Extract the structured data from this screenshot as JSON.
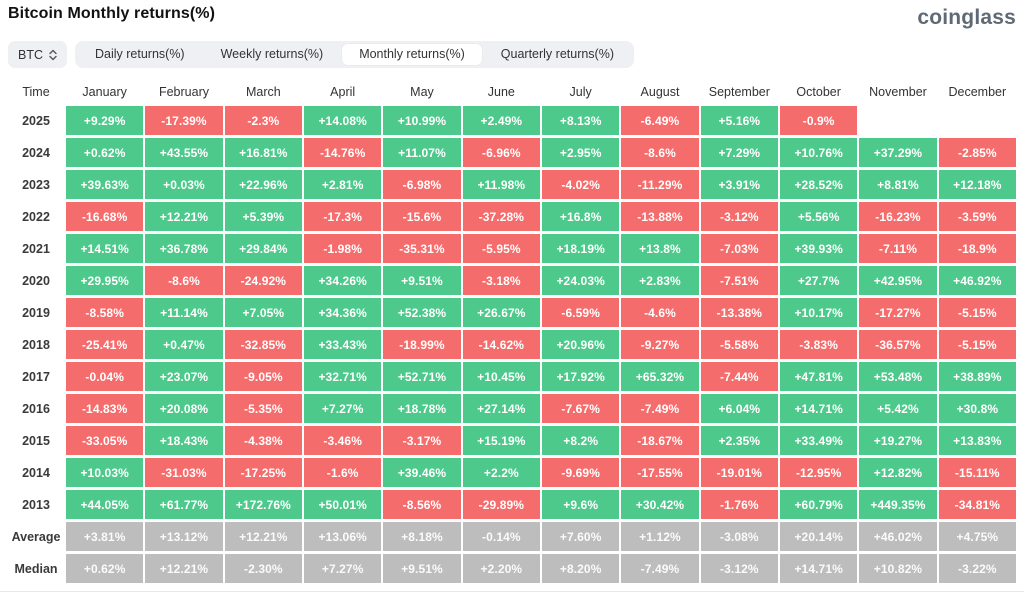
{
  "page": {
    "title": "Bitcoin Monthly returns(%)",
    "brand": "coinglass"
  },
  "controls": {
    "symbol_selector": {
      "label": "BTC",
      "icon": "updown-arrows-icon"
    },
    "tabs": [
      {
        "label": "Daily returns(%)",
        "active": false
      },
      {
        "label": "Weekly returns(%)",
        "active": false
      },
      {
        "label": "Monthly returns(%)",
        "active": true
      },
      {
        "label": "Quarterly returns(%)",
        "active": false
      }
    ]
  },
  "colors": {
    "positive": "#4EC98C",
    "negative": "#F56C6C",
    "neutral": "#BDBDBD"
  },
  "chart_data": {
    "type": "table",
    "title": "Bitcoin Monthly returns(%)",
    "columns": [
      "Time",
      "January",
      "February",
      "March",
      "April",
      "May",
      "June",
      "July",
      "August",
      "September",
      "October",
      "November",
      "December"
    ],
    "rows": [
      {
        "label": "2025",
        "neutral": false,
        "values": [
          "+9.29%",
          "-17.39%",
          "-2.3%",
          "+14.08%",
          "+10.99%",
          "+2.49%",
          "+8.13%",
          "-6.49%",
          "+5.16%",
          "-0.9%",
          null,
          null
        ]
      },
      {
        "label": "2024",
        "neutral": false,
        "values": [
          "+0.62%",
          "+43.55%",
          "+16.81%",
          "-14.76%",
          "+11.07%",
          "-6.96%",
          "+2.95%",
          "-8.6%",
          "+7.29%",
          "+10.76%",
          "+37.29%",
          "-2.85%"
        ]
      },
      {
        "label": "2023",
        "neutral": false,
        "values": [
          "+39.63%",
          "+0.03%",
          "+22.96%",
          "+2.81%",
          "-6.98%",
          "+11.98%",
          "-4.02%",
          "-11.29%",
          "+3.91%",
          "+28.52%",
          "+8.81%",
          "+12.18%"
        ]
      },
      {
        "label": "2022",
        "neutral": false,
        "values": [
          "-16.68%",
          "+12.21%",
          "+5.39%",
          "-17.3%",
          "-15.6%",
          "-37.28%",
          "+16.8%",
          "-13.88%",
          "-3.12%",
          "+5.56%",
          "-16.23%",
          "-3.59%"
        ]
      },
      {
        "label": "2021",
        "neutral": false,
        "values": [
          "+14.51%",
          "+36.78%",
          "+29.84%",
          "-1.98%",
          "-35.31%",
          "-5.95%",
          "+18.19%",
          "+13.8%",
          "-7.03%",
          "+39.93%",
          "-7.11%",
          "-18.9%"
        ]
      },
      {
        "label": "2020",
        "neutral": false,
        "values": [
          "+29.95%",
          "-8.6%",
          "-24.92%",
          "+34.26%",
          "+9.51%",
          "-3.18%",
          "+24.03%",
          "+2.83%",
          "-7.51%",
          "+27.7%",
          "+42.95%",
          "+46.92%"
        ]
      },
      {
        "label": "2019",
        "neutral": false,
        "values": [
          "-8.58%",
          "+11.14%",
          "+7.05%",
          "+34.36%",
          "+52.38%",
          "+26.67%",
          "-6.59%",
          "-4.6%",
          "-13.38%",
          "+10.17%",
          "-17.27%",
          "-5.15%"
        ]
      },
      {
        "label": "2018",
        "neutral": false,
        "values": [
          "-25.41%",
          "+0.47%",
          "-32.85%",
          "+33.43%",
          "-18.99%",
          "-14.62%",
          "+20.96%",
          "-9.27%",
          "-5.58%",
          "-3.83%",
          "-36.57%",
          "-5.15%"
        ]
      },
      {
        "label": "2017",
        "neutral": false,
        "values": [
          "-0.04%",
          "+23.07%",
          "-9.05%",
          "+32.71%",
          "+52.71%",
          "+10.45%",
          "+17.92%",
          "+65.32%",
          "-7.44%",
          "+47.81%",
          "+53.48%",
          "+38.89%"
        ]
      },
      {
        "label": "2016",
        "neutral": false,
        "values": [
          "-14.83%",
          "+20.08%",
          "-5.35%",
          "+7.27%",
          "+18.78%",
          "+27.14%",
          "-7.67%",
          "-7.49%",
          "+6.04%",
          "+14.71%",
          "+5.42%",
          "+30.8%"
        ]
      },
      {
        "label": "2015",
        "neutral": false,
        "values": [
          "-33.05%",
          "+18.43%",
          "-4.38%",
          "-3.46%",
          "-3.17%",
          "+15.19%",
          "+8.2%",
          "-18.67%",
          "+2.35%",
          "+33.49%",
          "+19.27%",
          "+13.83%"
        ]
      },
      {
        "label": "2014",
        "neutral": false,
        "values": [
          "+10.03%",
          "-31.03%",
          "-17.25%",
          "-1.6%",
          "+39.46%",
          "+2.2%",
          "-9.69%",
          "-17.55%",
          "-19.01%",
          "-12.95%",
          "+12.82%",
          "-15.11%"
        ]
      },
      {
        "label": "2013",
        "neutral": false,
        "values": [
          "+44.05%",
          "+61.77%",
          "+172.76%",
          "+50.01%",
          "-8.56%",
          "-29.89%",
          "+9.6%",
          "+30.42%",
          "-1.76%",
          "+60.79%",
          "+449.35%",
          "-34.81%"
        ]
      },
      {
        "label": "Average",
        "neutral": true,
        "values": [
          "+3.81%",
          "+13.12%",
          "+12.21%",
          "+13.06%",
          "+8.18%",
          "-0.14%",
          "+7.60%",
          "+1.12%",
          "-3.08%",
          "+20.14%",
          "+46.02%",
          "+4.75%"
        ]
      },
      {
        "label": "Median",
        "neutral": true,
        "values": [
          "+0.62%",
          "+12.21%",
          "-2.30%",
          "+7.27%",
          "+9.51%",
          "+2.20%",
          "+8.20%",
          "-7.49%",
          "-3.12%",
          "+14.71%",
          "+10.82%",
          "-3.22%"
        ]
      }
    ]
  }
}
